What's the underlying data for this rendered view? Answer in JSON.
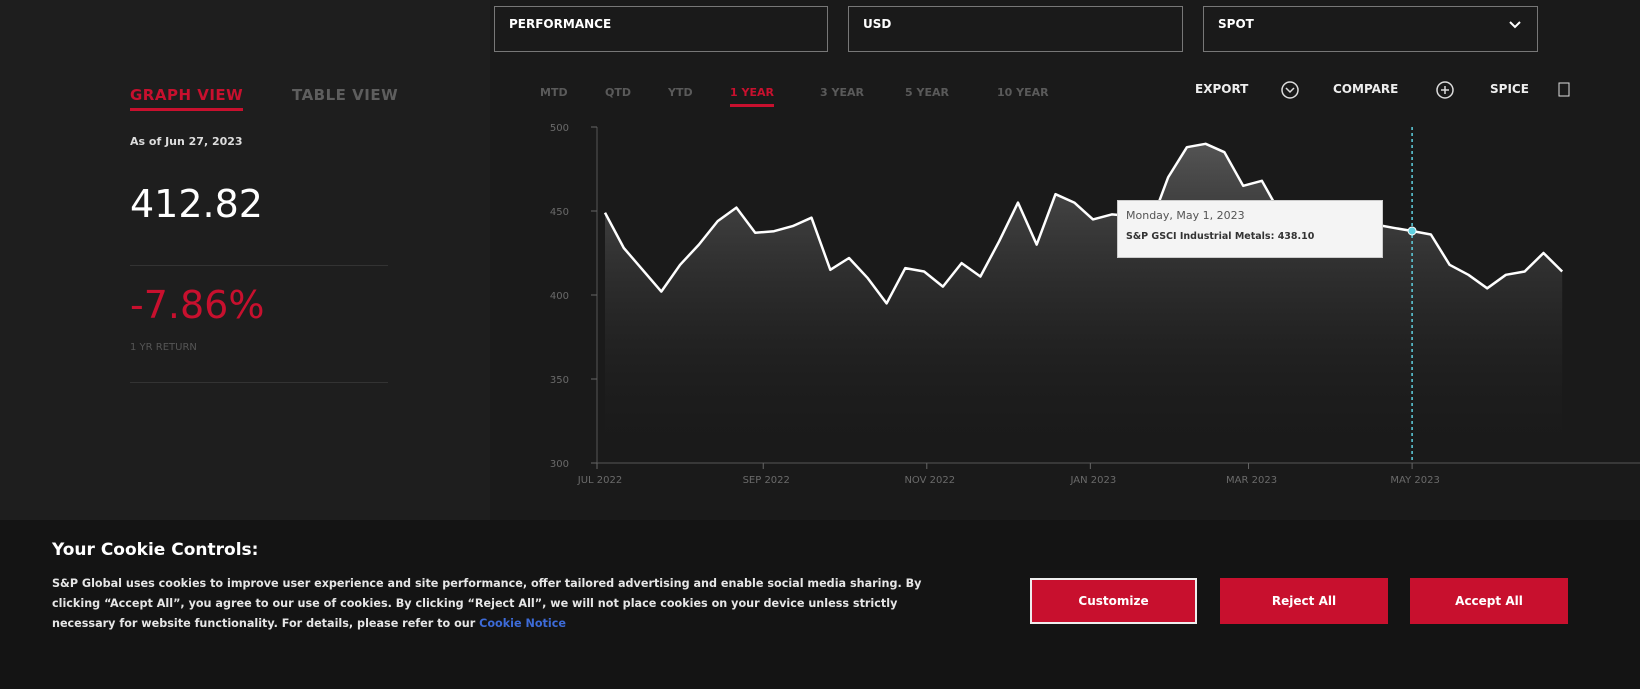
{
  "selectors": [
    "PERFORMANCE",
    "USD",
    "SPOT"
  ],
  "view_tabs": [
    "GRAPH VIEW",
    "TABLE VIEW"
  ],
  "as_of": "As of Jun 27, 2023",
  "level": "412.82",
  "return": "-7.86%",
  "return_label": "1 YR RETURN",
  "period_tabs": [
    "MTD",
    "QTD",
    "YTD",
    "1 YEAR",
    "3 YEAR",
    "5 YEAR",
    "10 YEAR"
  ],
  "actions": [
    "EXPORT",
    "COMPARE",
    "SPICE"
  ],
  "chart_data": {
    "type": "line",
    "color": "#ffffff",
    "x": [
      "2022-07-04",
      "2022-07-11",
      "2022-07-18",
      "2022-07-25",
      "2022-08-01",
      "2022-08-08",
      "2022-08-15",
      "2022-08-22",
      "2022-08-29",
      "2022-09-05",
      "2022-09-12",
      "2022-09-19",
      "2022-09-26",
      "2022-10-03",
      "2022-10-10",
      "2022-10-17",
      "2022-10-24",
      "2022-10-31",
      "2022-11-07",
      "2022-11-14",
      "2022-11-21",
      "2022-11-28",
      "2022-12-05",
      "2022-12-12",
      "2022-12-19",
      "2022-12-26",
      "2023-01-02",
      "2023-01-09",
      "2023-01-16",
      "2023-01-23",
      "2023-01-30",
      "2023-02-06",
      "2023-02-13",
      "2023-02-20",
      "2023-02-27",
      "2023-03-06",
      "2023-03-13",
      "2023-03-20",
      "2023-03-27",
      "2023-04-03",
      "2023-04-10",
      "2023-04-17",
      "2023-04-24",
      "2023-05-01",
      "2023-05-08",
      "2023-05-15",
      "2023-05-22",
      "2023-05-29",
      "2023-06-05",
      "2023-06-12",
      "2023-06-19",
      "2023-06-26"
    ],
    "values": [
      449,
      428,
      415,
      402,
      418,
      430,
      444,
      452,
      437,
      438,
      441,
      446,
      415,
      422,
      410,
      395,
      416,
      414,
      405,
      419,
      411,
      432,
      455,
      430,
      460,
      455,
      445,
      448,
      447,
      440,
      470,
      488,
      490,
      485,
      465,
      468,
      448,
      445,
      440,
      438,
      440,
      442,
      440,
      438.1,
      436,
      418,
      412,
      404,
      412,
      414,
      425,
      414
    ],
    "xlim": [
      "2022-07-01",
      "2023-07-25"
    ],
    "ylim": [
      300,
      500
    ],
    "xticks": [
      {
        "value": "2022-07-01",
        "label": "JUL 2022"
      },
      {
        "value": "2022-09-01",
        "label": "SEP 2022"
      },
      {
        "value": "2022-11-01",
        "label": "NOV 2022"
      },
      {
        "value": "2023-01-01",
        "label": "JAN 2023"
      },
      {
        "value": "2023-03-01",
        "label": "MAR 2023"
      },
      {
        "value": "2023-05-01",
        "label": "MAY 2023"
      }
    ],
    "yticks": [
      300,
      350,
      400,
      450,
      500
    ],
    "tooltip": {
      "title": "Monday, May 1, 2023",
      "text": "S&P GSCI Industrial Metals: 438.10"
    }
  },
  "cookie": {
    "title": "Your Cookie Controls:",
    "text": "S&P Global uses cookies to improve user experience and site performance, offer tailored advertising and enable social media sharing. By clicking “Accept All”, you agree to our use of cookies. By clicking “Reject All”, we will not place cookies on your device unless strictly necessary for website functionality. For details, please refer to our",
    "link": "Cookie Notice",
    "buttons": [
      "Customize",
      "Reject All",
      "Accept All"
    ]
  }
}
